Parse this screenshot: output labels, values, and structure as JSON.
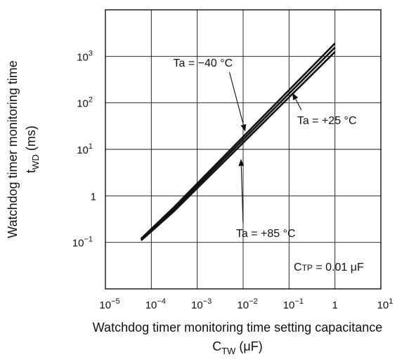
{
  "chart_data": {
    "type": "line",
    "xscale": "log",
    "yscale": "log",
    "xlim": [
      1e-05,
      10
    ],
    "ylim": [
      0.01,
      10000
    ],
    "grid": true,
    "legend": "none",
    "xlabel": {
      "main": "Watchdog timer monitoring time setting capacitance",
      "sym": "C",
      "sub": "TW",
      "unit": " (μF)"
    },
    "ylabel": {
      "main": "Watchdog timer monitoring time",
      "sym": "t",
      "sub": "WD",
      "unit": " (ms)"
    },
    "x_ticks": [
      {
        "value": 1e-05,
        "base": "10",
        "exp": "−5"
      },
      {
        "value": 0.0001,
        "base": "10",
        "exp": "−4"
      },
      {
        "value": 0.001,
        "base": "10",
        "exp": "−3"
      },
      {
        "value": 0.01,
        "base": "10",
        "exp": "−2"
      },
      {
        "value": 0.1,
        "base": "10",
        "exp": "−1"
      },
      {
        "value": 1,
        "base": "1",
        "exp": ""
      },
      {
        "value": 10,
        "base": "10",
        "exp": "1"
      }
    ],
    "y_ticks": [
      {
        "value": 0.1,
        "base": "10",
        "exp": "−1"
      },
      {
        "value": 1,
        "base": "1",
        "exp": ""
      },
      {
        "value": 10,
        "base": "10",
        "exp": "1"
      },
      {
        "value": 100,
        "base": "10",
        "exp": "2"
      },
      {
        "value": 1000,
        "base": "10",
        "exp": "3"
      }
    ],
    "series": [
      {
        "key": "t_m40",
        "x": [
          6e-05,
          0.0003,
          1
        ],
        "y": [
          0.12,
          0.55,
          1900
        ]
      },
      {
        "key": "t_p25",
        "x": [
          6e-05,
          0.0003,
          1
        ],
        "y": [
          0.115,
          0.5,
          1550
        ]
      },
      {
        "key": "t_p85",
        "x": [
          6e-05,
          0.0003,
          1
        ],
        "y": [
          0.11,
          0.45,
          1250
        ]
      }
    ],
    "annotations": [
      {
        "text": "Ta = −40 °C",
        "label_x": 0.0003,
        "label_y": 600,
        "arrow_to_x": 0.011,
        "arrow_to_y": 25
      },
      {
        "text": "Ta = +25 °C",
        "label_x": 0.15,
        "label_y": 35,
        "arrow_to_x": 0.12,
        "arrow_to_y": 160
      },
      {
        "text": "Ta = +85 °C",
        "label_x": 0.007,
        "label_y": 0.13,
        "arrow_to_x": 0.009,
        "arrow_to_y": 6
      }
    ],
    "condition": {
      "sym": "C",
      "sub": "TP",
      "rest": " = 0.01 μF"
    }
  }
}
